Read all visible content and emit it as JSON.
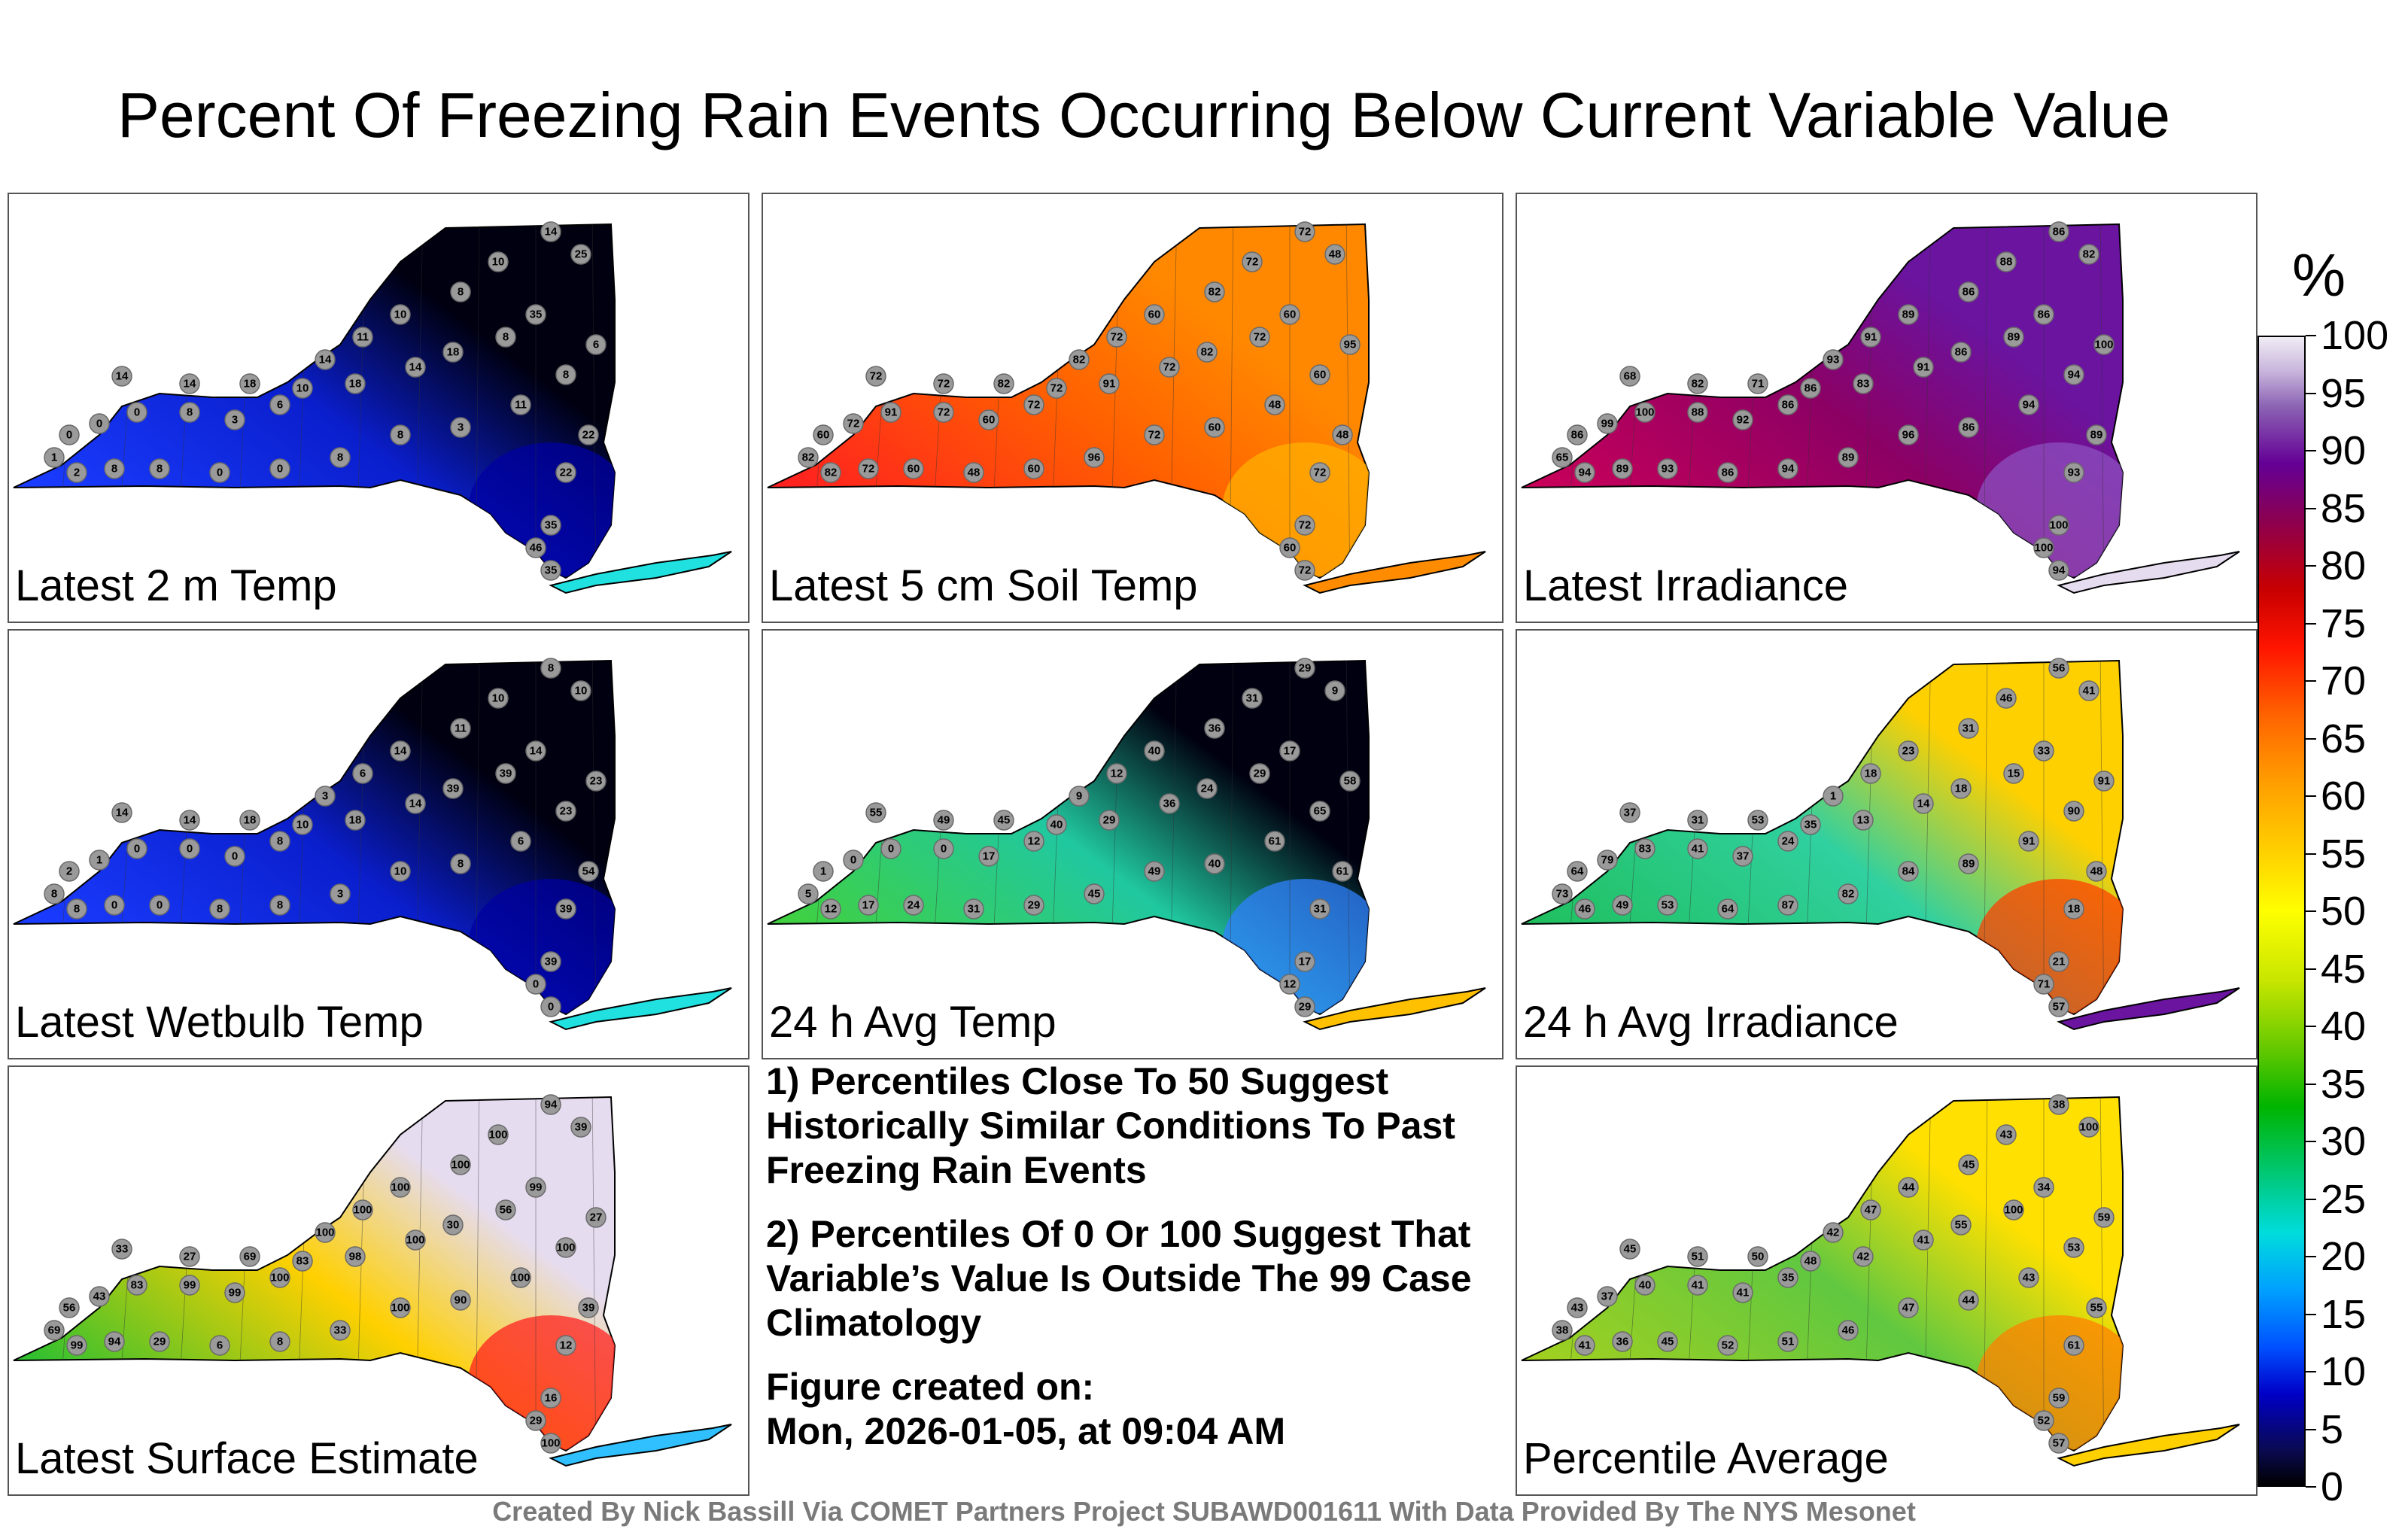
{
  "title": "Percent Of Freezing Rain Events Occurring Below Current Variable Value",
  "colorbar": {
    "unit": "%",
    "ticks": [
      "0",
      "5",
      "10",
      "15",
      "20",
      "25",
      "30",
      "35",
      "40",
      "45",
      "50",
      "55",
      "60",
      "65",
      "70",
      "75",
      "80",
      "85",
      "90",
      "95",
      "100"
    ]
  },
  "notes": {
    "line1": "1) Percentiles Close To 50 Suggest Historically Similar Conditions To Past Freezing Rain Events",
    "line2": "2) Percentiles Of 0 Or 100 Suggest That Variable’s Value Is Outside The 99 Case Climatology",
    "created_label": "Figure created on:",
    "created_value": "Mon, 2026-01-05, at 09:04 AM"
  },
  "footer": "Created By Nick Bassill Via COMET Partners Project SUBAWD001611 With Data Provided By The NYS Mesonet",
  "panels": [
    {
      "id": "p1",
      "label": "Latest 2 m Temp",
      "colors": {
        "west": "#1a3cff",
        "mid": "#0a1ecc",
        "north": "#000010",
        "south": "#0000a0",
        "li": "#20e0e0"
      },
      "stations": [
        "14",
        "14",
        "18",
        "10",
        "18",
        "14",
        "18",
        "8",
        "35",
        "25",
        "14",
        "10",
        "8",
        "10",
        "11",
        "14",
        "6",
        "3",
        "8",
        "0",
        "0",
        "0",
        "1",
        "2",
        "8",
        "8",
        "0",
        "0",
        "8",
        "8",
        "3",
        "11",
        "8",
        "6",
        "22",
        "22",
        "35",
        "46",
        "35"
      ]
    },
    {
      "id": "p2",
      "label": "Latest 5 cm Soil Temp",
      "colors": {
        "west": "#ff2020",
        "mid": "#ff6000",
        "north": "#ff8800",
        "south": "#ffb000",
        "li": "#ff8c00"
      },
      "stations": [
        "72",
        "72",
        "82",
        "72",
        "91",
        "72",
        "82",
        "72",
        "60",
        "48",
        "72",
        "72",
        "82",
        "60",
        "72",
        "82",
        "72",
        "60",
        "72",
        "91",
        "72",
        "60",
        "82",
        "82",
        "72",
        "60",
        "48",
        "60",
        "96",
        "72",
        "60",
        "48",
        "60",
        "95",
        "48",
        "72",
        "72",
        "60",
        "72"
      ]
    },
    {
      "id": "p3",
      "label": "Latest Irradiance",
      "colors": {
        "west": "#c8005a",
        "mid": "#8c0064",
        "north": "#6a14a0",
        "south": "#8c50c0",
        "li": "#e6dcf0"
      },
      "stations": [
        "68",
        "82",
        "71",
        "86",
        "83",
        "91",
        "86",
        "89",
        "86",
        "82",
        "86",
        "88",
        "86",
        "89",
        "91",
        "93",
        "86",
        "92",
        "88",
        "100",
        "99",
        "86",
        "65",
        "94",
        "89",
        "93",
        "86",
        "94",
        "89",
        "96",
        "86",
        "94",
        "94",
        "100",
        "89",
        "93",
        "100",
        "100",
        "94"
      ]
    },
    {
      "id": "p4",
      "label": "Latest Wetbulb Temp",
      "colors": {
        "west": "#1a3cff",
        "mid": "#0a1ecc",
        "north": "#000010",
        "south": "#0000a0",
        "li": "#20e0e0"
      },
      "stations": [
        "14",
        "14",
        "18",
        "10",
        "18",
        "14",
        "39",
        "39",
        "14",
        "10",
        "8",
        "10",
        "11",
        "14",
        "6",
        "3",
        "8",
        "0",
        "0",
        "0",
        "1",
        "2",
        "8",
        "8",
        "0",
        "0",
        "8",
        "8",
        "3",
        "10",
        "8",
        "6",
        "23",
        "23",
        "54",
        "39",
        "39",
        "0",
        "0"
      ]
    },
    {
      "id": "p5",
      "label": "24 h Avg Temp",
      "colors": {
        "west": "#40d040",
        "mid": "#20c8a0",
        "north": "#000010",
        "south": "#3080ff",
        "li": "#ffc000"
      },
      "stations": [
        "55",
        "49",
        "45",
        "40",
        "29",
        "36",
        "24",
        "29",
        "17",
        "9",
        "29",
        "31",
        "36",
        "40",
        "12",
        "9",
        "12",
        "17",
        "0",
        "0",
        "0",
        "1",
        "5",
        "12",
        "17",
        "24",
        "31",
        "29",
        "45",
        "49",
        "40",
        "61",
        "65",
        "58",
        "61",
        "31",
        "17",
        "12",
        "29"
      ]
    },
    {
      "id": "p6",
      "label": "24 h Avg Irradiance",
      "colors": {
        "west": "#20c060",
        "mid": "#30d0a0",
        "north": "#ffd000",
        "south": "#ff4000",
        "li": "#6a14a0"
      },
      "stations": [
        "37",
        "31",
        "53",
        "35",
        "13",
        "14",
        "18",
        "15",
        "33",
        "41",
        "56",
        "46",
        "31",
        "23",
        "18",
        "1",
        "24",
        "37",
        "41",
        "83",
        "79",
        "64",
        "73",
        "46",
        "49",
        "53",
        "64",
        "87",
        "82",
        "84",
        "89",
        "91",
        "90",
        "91",
        "48",
        "18",
        "21",
        "71",
        "57"
      ]
    },
    {
      "id": "p7",
      "label": "Latest Surface Estimate",
      "colors": {
        "west": "#30c030",
        "mid": "#ffd000",
        "north": "#e6dcf0",
        "south": "#ff2020",
        "li": "#30c0ff"
      },
      "stations": [
        "33",
        "27",
        "69",
        "83",
        "98",
        "100",
        "30",
        "56",
        "99",
        "39",
        "94",
        "100",
        "100",
        "100",
        "100",
        "100",
        "100",
        "99",
        "99",
        "83",
        "43",
        "56",
        "69",
        "99",
        "94",
        "29",
        "6",
        "8",
        "33",
        "100",
        "90",
        "100",
        "100",
        "27",
        "39",
        "12",
        "16",
        "29",
        "100"
      ]
    },
    {
      "id": "p8",
      "label": "Percentile Average",
      "colors": {
        "west": "#a0d020",
        "mid": "#60c840",
        "north": "#ffe000",
        "south": "#ff8000",
        "li": "#ffd000"
      },
      "stations": [
        "45",
        "51",
        "50",
        "48",
        "42",
        "41",
        "55",
        "100",
        "34",
        "100",
        "38",
        "43",
        "45",
        "44",
        "47",
        "42",
        "35",
        "41",
        "41",
        "40",
        "37",
        "43",
        "38",
        "41",
        "36",
        "45",
        "52",
        "51",
        "46",
        "47",
        "44",
        "43",
        "53",
        "59",
        "55",
        "61",
        "59",
        "52",
        "57"
      ]
    }
  ]
}
